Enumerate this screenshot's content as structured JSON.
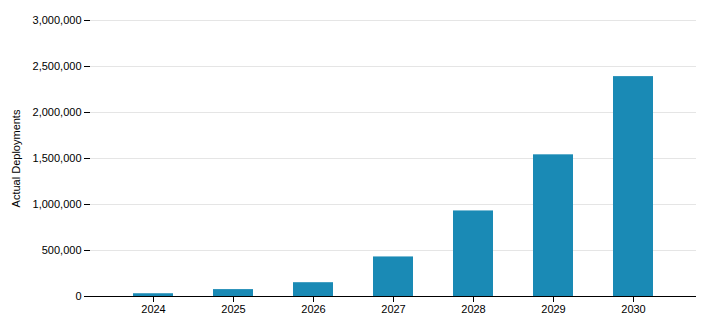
{
  "chart_data": {
    "type": "bar",
    "categories": [
      "2024",
      "2025",
      "2026",
      "2027",
      "2028",
      "2029",
      "2030"
    ],
    "values": [
      30000,
      75000,
      150000,
      430000,
      930000,
      1540000,
      2390000
    ],
    "color": "#1a8ab5",
    "ylabel": "Actual Deployments",
    "ylim": [
      0,
      3000000
    ],
    "yticks": [
      0,
      {
        "value": 500000,
        "label": "500,000"
      },
      {
        "value": 1000000,
        "label": "1,000,000"
      },
      {
        "value": 1500000,
        "label": "1,500,000"
      },
      {
        "value": 2000000,
        "label": "2,000,000"
      },
      {
        "value": 2500000,
        "label": "2,500,000"
      },
      {
        "value": 3000000,
        "label": "3,000,000"
      }
    ],
    "grid": true
  }
}
